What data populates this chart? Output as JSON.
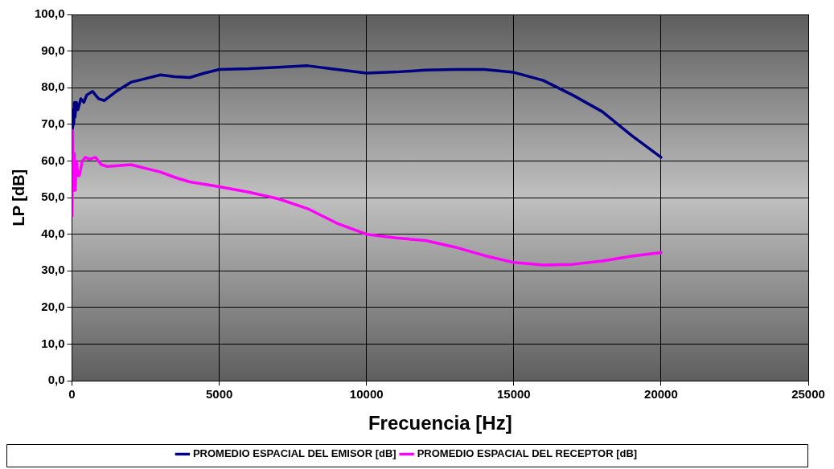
{
  "chart_data": {
    "type": "line",
    "xlabel": "Frecuencia [Hz]",
    "ylabel": "LP [dB]",
    "xlim": [
      0,
      25000
    ],
    "xticks": [
      0,
      5000,
      10000,
      15000,
      20000,
      25000
    ],
    "ylim": [
      0,
      100
    ],
    "yticks": [
      {
        "value": 0,
        "label": "0,0"
      },
      {
        "value": 10,
        "label": "10,0"
      },
      {
        "value": 20,
        "label": "20,0"
      },
      {
        "value": 30,
        "label": "30,0"
      },
      {
        "value": 40,
        "label": "40,0"
      },
      {
        "value": 50,
        "label": "50,0"
      },
      {
        "value": 60,
        "label": "60,0"
      },
      {
        "value": 70,
        "label": "70,0"
      },
      {
        "value": 80,
        "label": "80,0"
      },
      {
        "value": 90,
        "label": "90,0"
      },
      {
        "value": 100,
        "label": "100,0"
      }
    ],
    "grid": true,
    "legend": "bottom",
    "marker": "none",
    "line_style": "solid",
    "series": [
      {
        "name": "PROMEDIO ESPACIAL DEL EMISOR [dB]",
        "color": "#000080",
        "x": [
          20,
          40,
          60,
          80,
          100,
          150,
          200,
          300,
          400,
          500,
          700,
          900,
          1100,
          1500,
          2000,
          2500,
          3000,
          3500,
          4000,
          4500,
          5000,
          6000,
          7000,
          8000,
          9000,
          10000,
          11000,
          12000,
          13000,
          14000,
          15000,
          16000,
          17000,
          18000,
          19000,
          20000
        ],
        "values": [
          69,
          74,
          70,
          76,
          72,
          76,
          74,
          77,
          76,
          78,
          79,
          77,
          76.5,
          79,
          81.5,
          82.5,
          83.5,
          83,
          82.8,
          84,
          85,
          85.2,
          85.6,
          86,
          85,
          84,
          84.3,
          84.8,
          85,
          85,
          84.2,
          82,
          78,
          73.5,
          67,
          61
        ]
      },
      {
        "name": "PROMEDIO ESPACIAL DEL RECEPTOR [dB]",
        "color": "#ff00ff",
        "x": [
          0,
          20,
          50,
          80,
          110,
          150,
          200,
          250,
          350,
          450,
          600,
          800,
          1000,
          1200,
          1500,
          2000,
          2500,
          3000,
          3500,
          4000,
          5000,
          6000,
          7000,
          8000,
          9000,
          10000,
          11000,
          12000,
          13000,
          14000,
          15000,
          16000,
          17000,
          18000,
          19000,
          20000
        ],
        "values": [
          45,
          69,
          52,
          62,
          52,
          60,
          56,
          56,
          60,
          61,
          60.5,
          61,
          59,
          58.5,
          58.7,
          59,
          58,
          57,
          55.5,
          54.3,
          53,
          51.5,
          49.7,
          47,
          43,
          40,
          39,
          38.3,
          36.5,
          34.2,
          32.3,
          31.6,
          31.8,
          32.7,
          34,
          35
        ]
      }
    ]
  }
}
